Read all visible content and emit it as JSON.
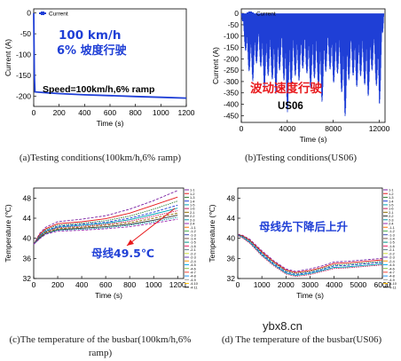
{
  "captions": {
    "a": "(a)Testing conditions(100km/h,6% ramp)",
    "b": "(b)Testing conditions(US06)",
    "c": "(c)The temperature of the busbar(100km/h,6% ramp)",
    "d": "(d) The temperature of the busbar(US06)"
  },
  "watermark": "ybx8.cn",
  "colors": {
    "current": "#1f3fd6",
    "red_annotation": "#e8191c",
    "blue_annotation": "#1f3fd6",
    "black": "#000000"
  },
  "chart_data": [
    {
      "id": "a",
      "type": "line",
      "xlabel": "Time (s)",
      "ylabel": "Current (A)",
      "xlim": [
        0,
        1200
      ],
      "ylim": [
        -225,
        10
      ],
      "xticks": [
        0,
        200,
        400,
        600,
        800,
        1000,
        1200
      ],
      "yticks": [
        0,
        -50,
        -100,
        -150,
        -200
      ],
      "legend": {
        "position": "top-left",
        "entries": [
          "Current"
        ]
      },
      "annotations": [
        {
          "text": "100 km/h",
          "color": "#1f3fd6"
        },
        {
          "text": "6% 坡度行驶",
          "color": "#1f3fd6"
        },
        {
          "text": "Speed=100km/h,6% ramp",
          "color": "#000000"
        }
      ],
      "series": [
        {
          "name": "Current",
          "x": [
            0,
            5,
            10,
            100,
            200,
            400,
            600,
            800,
            1000,
            1200
          ],
          "y": [
            0,
            -150,
            -190,
            -192,
            -194,
            -197,
            -199,
            -201,
            -203,
            -205
          ]
        }
      ]
    },
    {
      "id": "b",
      "type": "line",
      "xlabel": "Time (s)",
      "ylabel": "Current (A)",
      "xlim": [
        0,
        12500
      ],
      "ylim": [
        -480,
        20
      ],
      "xticks": [
        0,
        4000,
        8000,
        12000
      ],
      "yticks": [
        0,
        -50,
        -100,
        -150,
        -200,
        -250,
        -300,
        -350,
        -400,
        -450
      ],
      "legend": {
        "position": "top-left",
        "entries": [
          "Current"
        ]
      },
      "annotations": [
        {
          "text": "波动速度行驶",
          "color": "#e8191c"
        },
        {
          "text": "US06",
          "color": "#000000"
        }
      ],
      "series": [
        {
          "name": "Current",
          "pattern": "repeated US06 cycles, mostly between 0 and -250 A with peaks near -450 A",
          "x": [
            0,
            500,
            1000,
            1500,
            2000,
            2500,
            3000,
            3500,
            4000,
            4500,
            5000,
            5500,
            6000,
            6500,
            7000,
            7500,
            8000,
            8500,
            9000,
            9500,
            10000,
            10500,
            11000,
            11500,
            12000,
            12400
          ],
          "y": [
            0,
            -230,
            -300,
            -180,
            -330,
            -250,
            -360,
            -200,
            -440,
            -260,
            -300,
            -220,
            -330,
            -270,
            -400,
            -200,
            -310,
            -250,
            -470,
            -230,
            -330,
            -260,
            -380,
            -210,
            -440,
            0
          ]
        }
      ]
    },
    {
      "id": "c",
      "type": "line",
      "xlabel": "Time (s)",
      "ylabel": "Temperature (℃)",
      "xlim": [
        0,
        1250
      ],
      "ylim": [
        32,
        50
      ],
      "xticks": [
        0,
        200,
        400,
        600,
        800,
        1000,
        1200
      ],
      "yticks": [
        32,
        36,
        40,
        44,
        48
      ],
      "legend": {
        "position": "right",
        "entries": [
          "1-1",
          "1-2",
          "1-3",
          "1-4",
          "1-5",
          "1-6",
          "2-1",
          "2-2",
          "2-3",
          "2-4",
          "-1-1",
          "-1-2",
          "-1-3",
          "-1-4",
          "-1-5",
          "-1-6",
          "-2-1",
          "-2-2",
          "-2-3",
          "-2-4",
          "-4-5",
          "-4-6",
          "-4-7",
          "-4-8",
          "-4-9",
          "-4-10",
          "-4-11"
        ]
      },
      "annotations": [
        {
          "text": "母线49.5℃",
          "color": "#1f3fd6"
        }
      ],
      "x": [
        0,
        50,
        100,
        200,
        400,
        600,
        800,
        1000,
        1200
      ],
      "series": [
        {
          "name": "1-1",
          "y": [
            38.8,
            41.0,
            42.2,
            43.3,
            43.8,
            44.5,
            45.8,
            47.5,
            49.5
          ]
        },
        {
          "name": "1-2",
          "y": [
            38.8,
            40.8,
            41.9,
            42.9,
            43.3,
            43.9,
            45.0,
            46.6,
            48.2
          ]
        },
        {
          "name": "1-3",
          "y": [
            38.8,
            40.6,
            41.7,
            42.6,
            43.0,
            43.5,
            44.4,
            45.8,
            47.4
          ]
        },
        {
          "name": "1-4",
          "y": [
            38.8,
            40.5,
            41.5,
            42.4,
            42.8,
            43.2,
            44.0,
            45.2,
            46.6
          ]
        },
        {
          "name": "1-5",
          "y": [
            38.8,
            40.4,
            41.4,
            42.2,
            42.6,
            43.0,
            43.7,
            44.8,
            46.0
          ]
        },
        {
          "name": "1-6",
          "y": [
            38.8,
            40.3,
            41.3,
            42.1,
            42.4,
            42.8,
            43.4,
            44.4,
            45.5
          ]
        },
        {
          "name": "2-1",
          "y": [
            38.8,
            40.2,
            41.2,
            41.9,
            42.2,
            42.6,
            43.1,
            44.0,
            45.0
          ]
        },
        {
          "name": "2-2",
          "y": [
            38.8,
            40.1,
            41.0,
            41.7,
            42.0,
            42.3,
            42.8,
            43.6,
            44.6
          ]
        },
        {
          "name": "2-3",
          "y": [
            38.8,
            40.0,
            40.9,
            41.6,
            41.8,
            42.1,
            42.6,
            43.3,
            44.2
          ]
        },
        {
          "name": "2-4",
          "y": [
            38.8,
            39.9,
            40.8,
            41.4,
            41.6,
            41.9,
            42.3,
            43.0,
            43.8
          ]
        }
      ]
    },
    {
      "id": "d",
      "type": "line",
      "xlabel": "Time (s)",
      "ylabel": "Temperature (℃)",
      "xlim": [
        0,
        6000
      ],
      "ylim": [
        32,
        50
      ],
      "xticks": [
        0,
        1000,
        2000,
        3000,
        4000,
        5000,
        6000
      ],
      "yticks": [
        32,
        36,
        40,
        44,
        48
      ],
      "legend": {
        "position": "right",
        "entries": [
          "1-1",
          "1-2",
          "1-3",
          "1-4",
          "1-5",
          "1-6",
          "2-1",
          "2-2",
          "2-3",
          "2-4",
          "-1-1",
          "-1-2",
          "-1-3",
          "-1-4",
          "-1-5",
          "-1-6",
          "-2-1",
          "-2-2",
          "-2-3",
          "-2-4",
          "-4-5",
          "-4-6",
          "-4-7",
          "-4-8",
          "-4-9",
          "-4-10",
          "-4-11"
        ]
      },
      "annotations": [
        {
          "text": "母线先下降后上升",
          "color": "#1f3fd6"
        }
      ],
      "x": [
        0,
        200,
        500,
        1000,
        1500,
        2000,
        2400,
        3000,
        3500,
        4000,
        4500,
        5000,
        5500,
        6000
      ],
      "series": [
        {
          "name": "1-1",
          "y": [
            40.8,
            40.6,
            39.8,
            37.5,
            35.5,
            33.9,
            33.4,
            33.9,
            34.5,
            35.3,
            35.4,
            35.6,
            35.8,
            36.0
          ]
        },
        {
          "name": "1-2",
          "y": [
            40.7,
            40.5,
            39.6,
            37.3,
            35.3,
            33.7,
            33.2,
            33.6,
            34.2,
            35.0,
            35.1,
            35.3,
            35.5,
            35.7
          ]
        },
        {
          "name": "1-3",
          "y": [
            40.7,
            40.4,
            39.5,
            37.1,
            35.1,
            33.5,
            33.0,
            33.4,
            34.0,
            34.7,
            34.8,
            35.0,
            35.2,
            35.4
          ]
        },
        {
          "name": "1-4",
          "y": [
            40.6,
            40.3,
            39.3,
            36.9,
            34.9,
            33.3,
            32.8,
            33.2,
            33.8,
            34.5,
            34.6,
            34.8,
            35.0,
            35.2
          ]
        },
        {
          "name": "1-5",
          "y": [
            40.6,
            40.2,
            39.2,
            36.7,
            34.7,
            33.1,
            32.6,
            33.0,
            33.6,
            34.2,
            34.3,
            34.5,
            34.7,
            34.9
          ]
        },
        {
          "name": "1-6",
          "y": [
            40.5,
            40.1,
            39.0,
            36.5,
            34.5,
            32.9,
            32.4,
            32.8,
            33.4,
            34.0,
            34.1,
            34.3,
            34.5,
            34.7
          ]
        }
      ]
    }
  ]
}
